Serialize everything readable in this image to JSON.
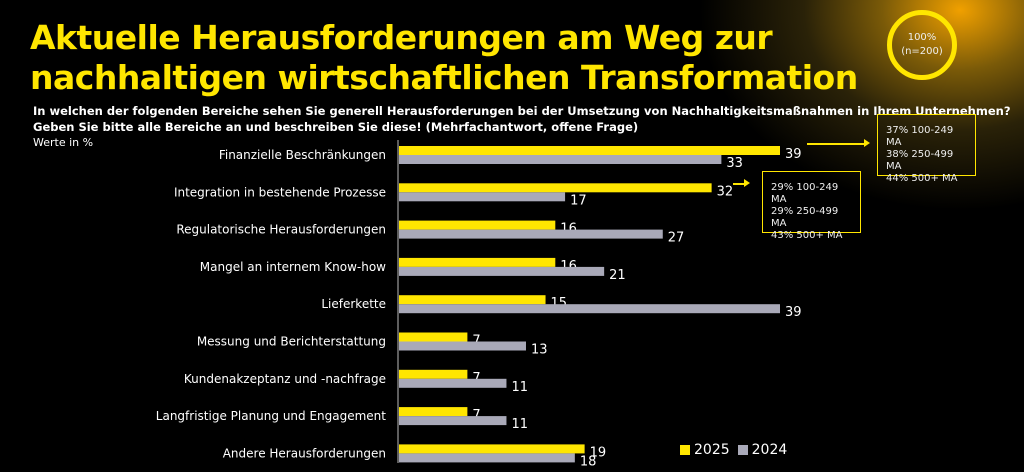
{
  "header": {
    "title_line1": "Aktuelle Herausforderungen am Weg zur",
    "title_line2": "nachhaltigen wirtschaftlichen Transformation",
    "question_line1": "In welchen der folgenden Bereiche sehen Sie generell Herausforderungen bei der Umsetzung von Nachhaltigkeitsmaßnahmen in Ihrem Unternehmen?",
    "question_line2": "Geben Sie bitte alle Bereiche an und beschreiben Sie diese! (Mehrfachantwort, offene Frage)",
    "unit_note": "Werte in %"
  },
  "sample": {
    "pct": "100%",
    "n": "(n=200)"
  },
  "callouts": [
    {
      "lines": [
        "37% 100-249 MA",
        "38% 250-499 MA",
        "44% 500+ MA"
      ]
    },
    {
      "lines": [
        "29% 100-249 MA",
        "29% 250-499 MA",
        "43% 500+ MA"
      ]
    }
  ],
  "colors": {
    "accent": "#ffe600",
    "series_2025": "#ffe600",
    "series_2024": "#a9a9b8",
    "background": "#000000"
  },
  "chart_data": {
    "type": "bar",
    "orientation": "horizontal",
    "categories": [
      "Finanzielle Beschränkungen",
      "Integration in bestehende Prozesse",
      "Regulatorische Herausforderungen",
      "Mangel an internem Know-how",
      "Lieferkette",
      "Messung und Berichterstattung",
      "Kundenakzeptanz und -nachfrage",
      "Langfristige Planung und Engagement",
      "Andere Herausforderungen"
    ],
    "series": [
      {
        "name": "2025",
        "values": [
          39,
          32,
          16,
          16,
          15,
          7,
          7,
          7,
          19
        ]
      },
      {
        "name": "2024",
        "values": [
          33,
          17,
          27,
          21,
          39,
          13,
          11,
          11,
          18
        ]
      }
    ],
    "xlim": [
      0,
      40
    ],
    "grid": false,
    "legend": "bottom-right"
  }
}
